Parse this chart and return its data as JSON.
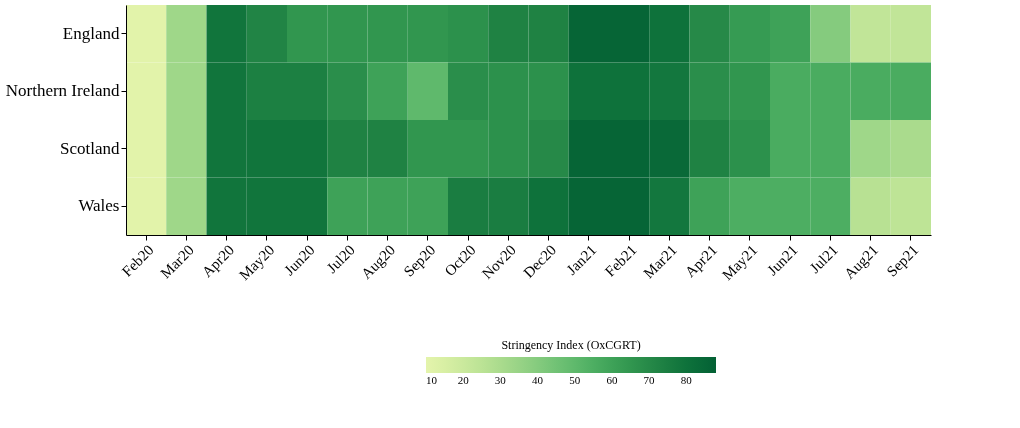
{
  "chart_data": {
    "type": "heatmap",
    "clabel": "Stringency Index (OxCGRT)",
    "categories": [
      "Feb20",
      "Mar20",
      "Apr20",
      "May20",
      "Jun20",
      "Jul20",
      "Aug20",
      "Sep20",
      "Oct20",
      "Nov20",
      "Dec20",
      "Jan21",
      "Feb21",
      "Mar21",
      "Apr21",
      "May21",
      "Jun21",
      "Jul21",
      "Aug21",
      "Sep21"
    ],
    "y_categories": [
      "England",
      "Northern Ireland",
      "Scotland",
      "Wales"
    ],
    "cells": [
      [
        11,
        33,
        79,
        72,
        65,
        65,
        65,
        65,
        67,
        73,
        73,
        86,
        86,
        80,
        70,
        63,
        60,
        40,
        23,
        23
      ],
      [
        11,
        33,
        79,
        74,
        74,
        68,
        60,
        50,
        68,
        67,
        67,
        80,
        80,
        78,
        68,
        65,
        56,
        56,
        56,
        56
      ],
      [
        11,
        33,
        79,
        79,
        79,
        73,
        73,
        65,
        65,
        67,
        70,
        86,
        86,
        84,
        73,
        67,
        56,
        56,
        33,
        30
      ],
      [
        11,
        33,
        79,
        79,
        79,
        60,
        60,
        60,
        75,
        75,
        80,
        86,
        86,
        78,
        60,
        55,
        55,
        55,
        26,
        24
      ]
    ],
    "clim": [
      10,
      88
    ],
    "cticks": [
      10,
      20,
      30,
      40,
      50,
      60,
      70,
      80
    ]
  }
}
